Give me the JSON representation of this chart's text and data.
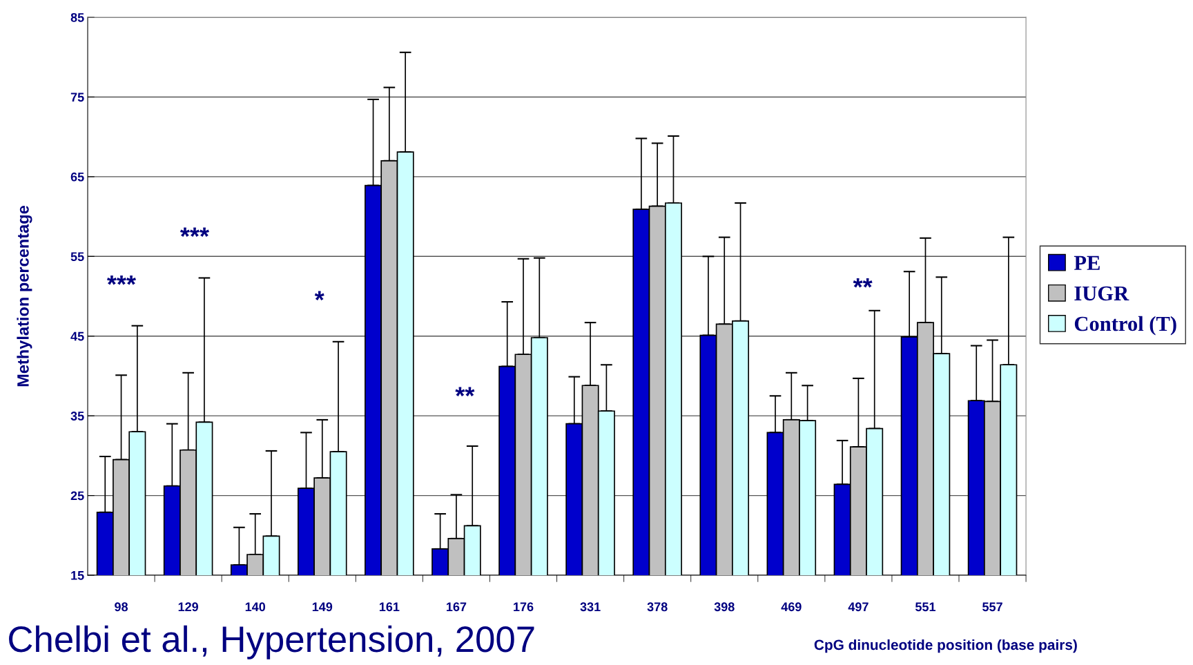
{
  "chart_data": {
    "type": "bar",
    "ylabel": "Methylation percentage",
    "xlabel": "CpG dinucleotide position (base pairs)",
    "categories": [
      "98",
      "129",
      "140",
      "149",
      "161",
      "167",
      "176",
      "331",
      "378",
      "398",
      "469",
      "497",
      "551",
      "557"
    ],
    "series": [
      {
        "name": "PE",
        "color": "#0000cc",
        "values": [
          22.9,
          26.2,
          16.3,
          25.9,
          63.9,
          18.3,
          41.2,
          34.0,
          60.9,
          45.1,
          32.9,
          26.4,
          44.9,
          36.9
        ],
        "errors": [
          [
            22.9,
            29.9
          ],
          [
            26.2,
            34.0
          ],
          [
            16.3,
            21.0
          ],
          [
            25.9,
            32.9
          ],
          [
            63.9,
            74.7
          ],
          [
            18.3,
            22.7
          ],
          [
            41.2,
            49.3
          ],
          [
            34.0,
            39.9
          ],
          [
            60.9,
            69.8
          ],
          [
            45.1,
            55.0
          ],
          [
            32.9,
            37.5
          ],
          [
            26.4,
            31.9
          ],
          [
            44.9,
            53.1
          ],
          [
            36.9,
            43.8
          ]
        ]
      },
      {
        "name": "IUGR",
        "color": "#c0c0c0",
        "values": [
          29.5,
          30.7,
          17.6,
          27.2,
          67.0,
          19.6,
          42.7,
          38.8,
          61.3,
          46.5,
          34.5,
          31.1,
          46.7,
          36.8
        ],
        "errors": [
          [
            29.5,
            40.1
          ],
          [
            30.7,
            40.4
          ],
          [
            17.6,
            22.7
          ],
          [
            27.2,
            34.5
          ],
          [
            67.0,
            76.2
          ],
          [
            19.6,
            25.1
          ],
          [
            42.7,
            54.7
          ],
          [
            38.8,
            46.7
          ],
          [
            61.3,
            69.2
          ],
          [
            46.5,
            57.4
          ],
          [
            34.5,
            40.4
          ],
          [
            31.1,
            39.7
          ],
          [
            46.7,
            57.3
          ],
          [
            36.8,
            44.5
          ]
        ]
      },
      {
        "name": "Control (T)",
        "color": "#ccffff",
        "values": [
          33.0,
          34.2,
          19.9,
          30.5,
          68.1,
          21.2,
          44.8,
          35.6,
          61.7,
          46.9,
          34.4,
          33.4,
          42.8,
          41.4
        ],
        "errors": [
          [
            33.0,
            46.3
          ],
          [
            34.2,
            52.3
          ],
          [
            19.9,
            30.6
          ],
          [
            30.5,
            44.3
          ],
          [
            68.1,
            80.6
          ],
          [
            21.2,
            31.2
          ],
          [
            44.8,
            54.8
          ],
          [
            35.6,
            41.4
          ],
          [
            61.7,
            70.1
          ],
          [
            46.9,
            61.7
          ],
          [
            34.4,
            38.8
          ],
          [
            33.4,
            48.2
          ],
          [
            42.8,
            52.4
          ],
          [
            41.4,
            57.4
          ]
        ]
      }
    ],
    "ylim": [
      15,
      85
    ],
    "yticks": [
      15,
      25,
      35,
      45,
      55,
      65,
      75,
      85
    ],
    "grid": "y",
    "legend": "right",
    "annotations": [
      "***",
      "***",
      "*",
      "**",
      "**",
      "Chelbi et al., Hypertension, 2007"
    ]
  }
}
